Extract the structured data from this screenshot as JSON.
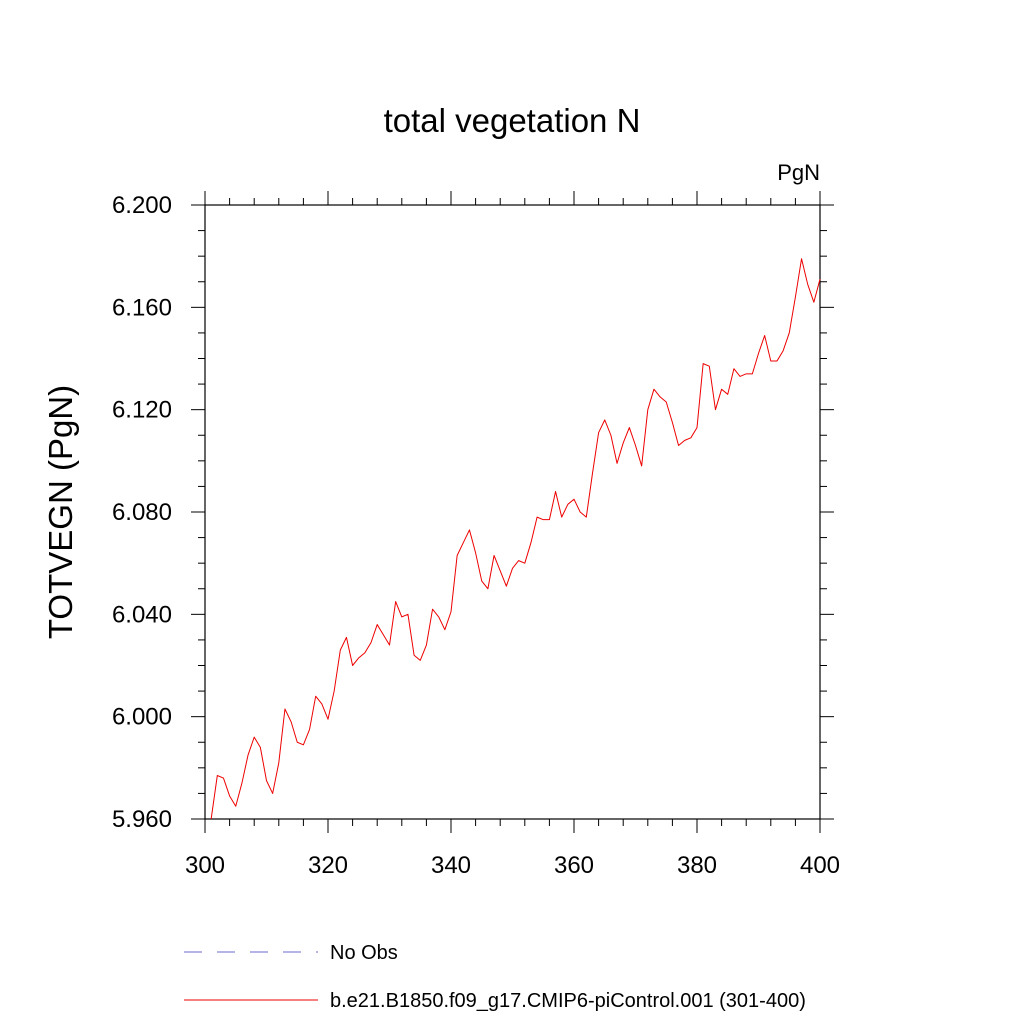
{
  "chart_data": {
    "type": "line",
    "title": "total vegetation N",
    "units_label": "PgN",
    "ylabel": "TOTVEGN  (PgN)",
    "xlabel": "",
    "xlim": [
      300,
      400
    ],
    "ylim": [
      5.96,
      6.2
    ],
    "x_ticks": [
      300,
      320,
      340,
      360,
      380,
      400
    ],
    "x_tick_labels": [
      "300",
      "320",
      "340",
      "360",
      "380",
      "400"
    ],
    "y_ticks": [
      5.96,
      6.0,
      6.04,
      6.08,
      6.12,
      6.16,
      6.2
    ],
    "y_tick_labels": [
      "5.960",
      "6.000",
      "6.040",
      "6.080",
      "6.120",
      "6.160",
      "6.200"
    ],
    "y_minor_step": 0.01,
    "x_minor_step": 4,
    "grid": false,
    "legend_position": "bottom",
    "legend": [
      {
        "label": "No Obs",
        "color": "#6a6acd",
        "dash": true
      },
      {
        "label": "b.e21.B1850.f09_g17.CMIP6-piControl.001 (301-400)",
        "color": "#ee0000",
        "dash": false
      }
    ],
    "series": [
      {
        "name": "b.e21.B1850.f09_g17.CMIP6-piControl.001 (301-400)",
        "color": "#ee0000",
        "x": [
          301,
          302,
          303,
          304,
          305,
          306,
          307,
          308,
          309,
          310,
          311,
          312,
          313,
          314,
          315,
          316,
          317,
          318,
          319,
          320,
          321,
          322,
          323,
          324,
          325,
          326,
          327,
          328,
          329,
          330,
          331,
          332,
          333,
          334,
          335,
          336,
          337,
          338,
          339,
          340,
          341,
          342,
          343,
          344,
          345,
          346,
          347,
          348,
          349,
          350,
          351,
          352,
          353,
          354,
          355,
          356,
          357,
          358,
          359,
          360,
          361,
          362,
          363,
          364,
          365,
          366,
          367,
          368,
          369,
          370,
          371,
          372,
          373,
          374,
          375,
          376,
          377,
          378,
          379,
          380,
          381,
          382,
          383,
          384,
          385,
          386,
          387,
          388,
          389,
          390,
          391,
          392,
          393,
          394,
          395,
          396,
          397,
          398,
          399,
          400
        ],
        "y": [
          5.96,
          5.977,
          5.976,
          5.969,
          5.965,
          5.974,
          5.985,
          5.992,
          5.988,
          5.975,
          5.97,
          5.982,
          6.003,
          5.998,
          5.99,
          5.989,
          5.995,
          6.008,
          6.005,
          5.999,
          6.01,
          6.026,
          6.031,
          6.02,
          6.023,
          6.025,
          6.029,
          6.036,
          6.032,
          6.028,
          6.045,
          6.039,
          6.04,
          6.024,
          6.022,
          6.028,
          6.042,
          6.039,
          6.034,
          6.041,
          6.063,
          6.068,
          6.073,
          6.064,
          6.053,
          6.05,
          6.063,
          6.057,
          6.051,
          6.058,
          6.061,
          6.06,
          6.068,
          6.078,
          6.077,
          6.077,
          6.088,
          6.078,
          6.083,
          6.085,
          6.08,
          6.078,
          6.095,
          6.111,
          6.116,
          6.11,
          6.099,
          6.107,
          6.113,
          6.106,
          6.098,
          6.12,
          6.128,
          6.125,
          6.123,
          6.115,
          6.106,
          6.108,
          6.109,
          6.113,
          6.138,
          6.137,
          6.12,
          6.128,
          6.126,
          6.136,
          6.133,
          6.134,
          6.134,
          6.142,
          6.149,
          6.139,
          6.139,
          6.143,
          6.15,
          6.164,
          6.179,
          6.169,
          6.162,
          6.171
        ]
      }
    ]
  }
}
